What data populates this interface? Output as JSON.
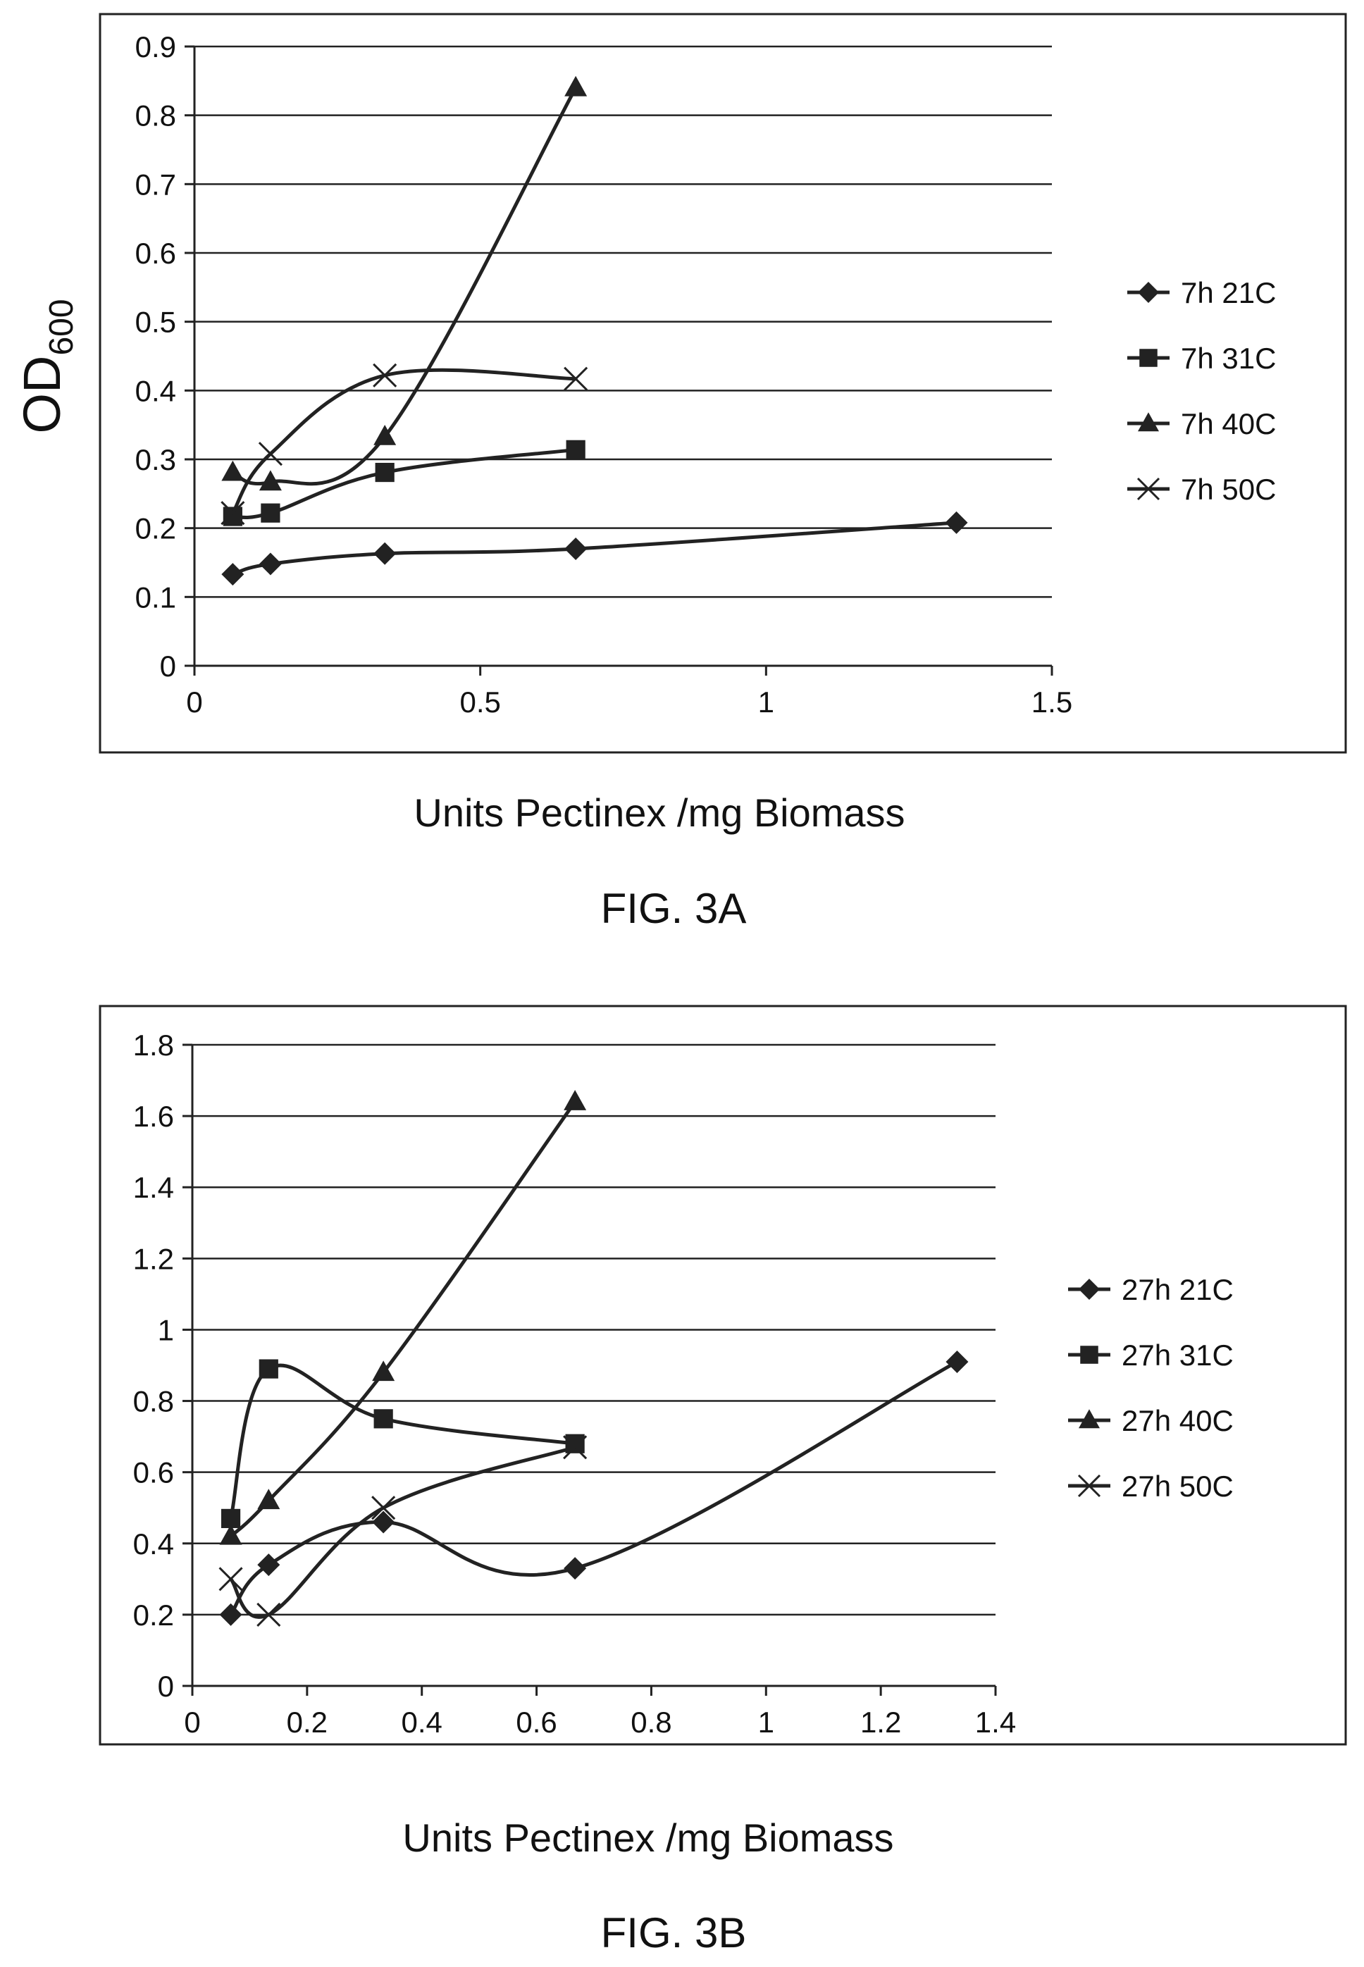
{
  "chart_data": [
    {
      "type": "line",
      "caption": "FIG. 3A",
      "xlabel": "Units Pectinex /mg Biomass",
      "ylabel_main": "OD",
      "ylabel_sub": "600",
      "xlim": [
        0,
        1.5
      ],
      "ylim": [
        0,
        0.9
      ],
      "xticks": [
        0,
        0.5,
        1,
        1.5
      ],
      "xtick_labels": [
        "0",
        "0.5",
        "1",
        "1.5"
      ],
      "yticks": [
        0,
        0.1,
        0.2,
        0.3,
        0.4,
        0.5,
        0.6,
        0.7,
        0.8,
        0.9
      ],
      "ytick_labels": [
        "0",
        "0.1",
        "0.2",
        "0.3",
        "0.4",
        "0.5",
        "0.6",
        "0.7",
        "0.8",
        "0.9"
      ],
      "grid": "horizontal",
      "legend_position": "right",
      "series": [
        {
          "name": "7h 21C",
          "marker": "diamond",
          "x": [
            0.067,
            0.133,
            0.333,
            0.667,
            1.333
          ],
          "y": [
            0.133,
            0.148,
            0.163,
            0.17,
            0.208
          ]
        },
        {
          "name": "7h 31C",
          "marker": "square",
          "x": [
            0.067,
            0.133,
            0.333,
            0.667
          ],
          "y": [
            0.217,
            0.222,
            0.281,
            0.314
          ]
        },
        {
          "name": "7h 40C",
          "marker": "triangle",
          "x": [
            0.067,
            0.133,
            0.333,
            0.667
          ],
          "y": [
            0.281,
            0.267,
            0.333,
            0.84
          ]
        },
        {
          "name": "7h 50C",
          "marker": "cross",
          "x": [
            0.067,
            0.133,
            0.333,
            0.667
          ],
          "y": [
            0.222,
            0.308,
            0.422,
            0.417
          ]
        }
      ]
    },
    {
      "type": "line",
      "caption": "FIG. 3B",
      "xlabel": "Units Pectinex /mg Biomass",
      "xlim": [
        0,
        1.4
      ],
      "ylim": [
        0,
        1.8
      ],
      "xticks": [
        0,
        0.2,
        0.4,
        0.6,
        0.8,
        1,
        1.2,
        1.4
      ],
      "xtick_labels": [
        "0",
        "0.2",
        "0.4",
        "0.6",
        "0.8",
        "1",
        "1.2",
        "1.4"
      ],
      "yticks": [
        0,
        0.2,
        0.4,
        0.6,
        0.8,
        1,
        1.2,
        1.4,
        1.6,
        1.8
      ],
      "ytick_labels": [
        "0",
        "0.2",
        "0.4",
        "0.6",
        "0.8",
        "1",
        "1.2",
        "1.4",
        "1.6",
        "1.8"
      ],
      "grid": "horizontal",
      "legend_position": "right",
      "series": [
        {
          "name": "27h  21C",
          "marker": "diamond",
          "x": [
            0.067,
            0.133,
            0.333,
            0.667,
            1.333
          ],
          "y": [
            0.2,
            0.34,
            0.46,
            0.33,
            0.91
          ]
        },
        {
          "name": "27h  31C",
          "marker": "square",
          "x": [
            0.067,
            0.133,
            0.333,
            0.667
          ],
          "y": [
            0.47,
            0.89,
            0.75,
            0.68
          ]
        },
        {
          "name": "27h  40C",
          "marker": "triangle",
          "x": [
            0.067,
            0.133,
            0.333,
            0.667
          ],
          "y": [
            0.42,
            0.52,
            0.88,
            1.64
          ]
        },
        {
          "name": "27h  50C",
          "marker": "cross",
          "x": [
            0.067,
            0.133,
            0.333,
            0.667
          ],
          "y": [
            0.3,
            0.2,
            0.5,
            0.67
          ]
        }
      ]
    }
  ]
}
